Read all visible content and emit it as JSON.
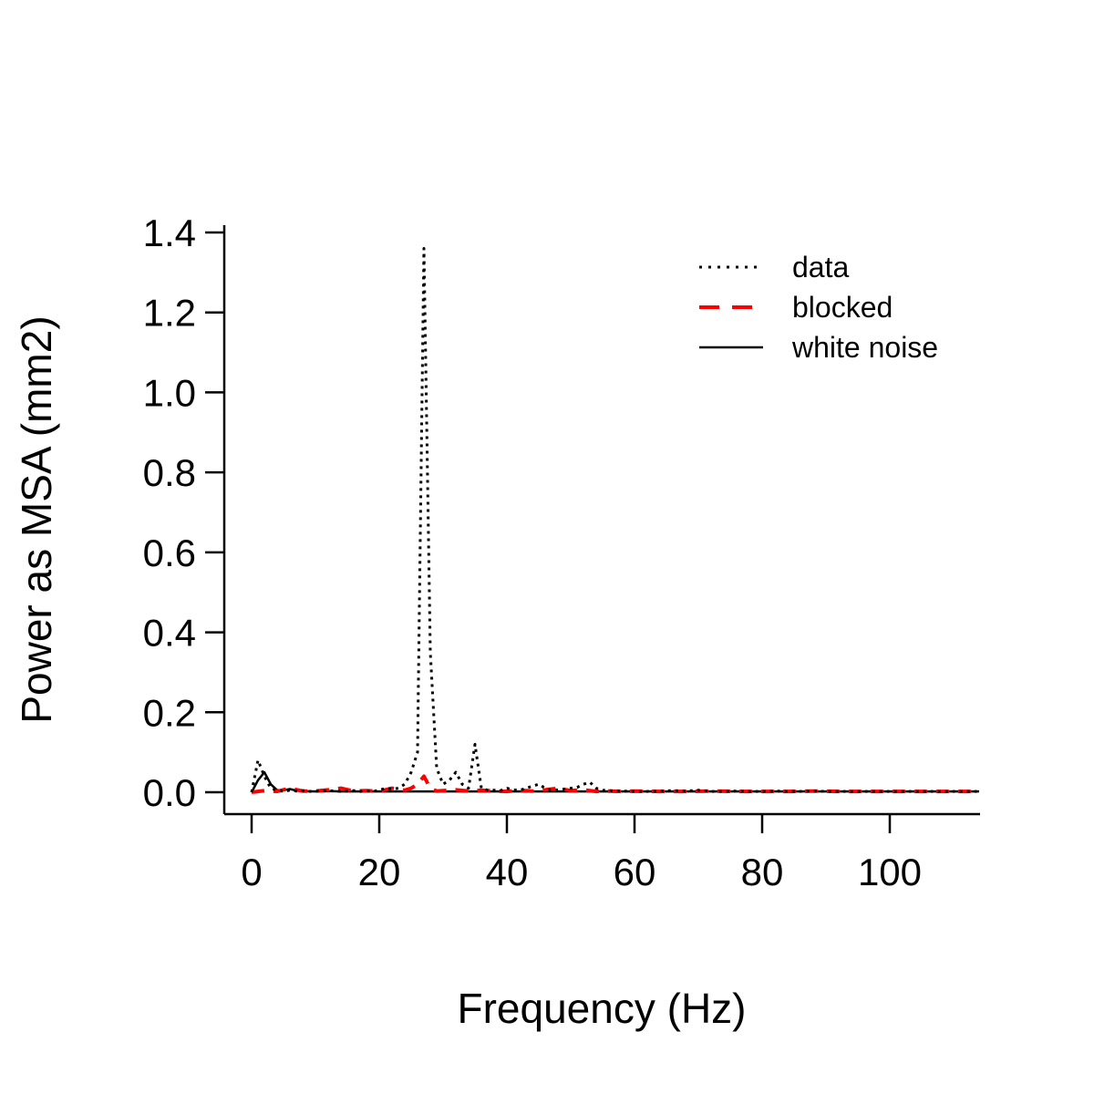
{
  "chart_data": {
    "type": "line",
    "title": "",
    "xlabel": "Frequency (Hz)",
    "ylabel": "Power as MSA (mm2)",
    "xlim": [
      -4,
      114
    ],
    "ylim": [
      -0.05,
      1.4
    ],
    "xticks": [
      0,
      20,
      40,
      60,
      80,
      100
    ],
    "yticks": [
      0.0,
      0.2,
      0.4,
      0.6,
      0.8,
      1.0,
      1.2,
      1.4
    ],
    "xtick_labels": [
      "0",
      "20",
      "40",
      "60",
      "80",
      "100"
    ],
    "ytick_labels": [
      "0.0",
      "0.2",
      "0.4",
      "0.6",
      "0.8",
      "1.0",
      "1.2",
      "1.4"
    ],
    "grid": false,
    "legend_position": "top-right",
    "series": [
      {
        "name": "data",
        "style": "dotted",
        "color": "#000000",
        "x": [
          0,
          1,
          2,
          3,
          4,
          5,
          6,
          7,
          8,
          9,
          10,
          11,
          12,
          13,
          14,
          15,
          16,
          17,
          18,
          19,
          20,
          21,
          22,
          23,
          24,
          25,
          26,
          27,
          28,
          29,
          30,
          31,
          32,
          33,
          34,
          35,
          36,
          37,
          38,
          39,
          40,
          41,
          42,
          43,
          44,
          45,
          46,
          47,
          48,
          49,
          50,
          51,
          52,
          53,
          54,
          55,
          56,
          58,
          60,
          62,
          64,
          66,
          68,
          70,
          72,
          74,
          76,
          78,
          80,
          82,
          84,
          86,
          88,
          90,
          92,
          94,
          96,
          98,
          100,
          102,
          104,
          106,
          108,
          110,
          112,
          114
        ],
        "y": [
          0.0,
          0.08,
          0.04,
          0.01,
          0.005,
          0.002,
          0.005,
          0.003,
          0.004,
          0.002,
          0.003,
          0.002,
          0.004,
          0.003,
          0.002,
          0.003,
          0.004,
          0.002,
          0.003,
          0.002,
          0.005,
          0.01,
          0.008,
          0.01,
          0.02,
          0.05,
          0.1,
          1.36,
          0.35,
          0.06,
          0.02,
          0.03,
          0.05,
          0.02,
          0.01,
          0.12,
          0.01,
          0.005,
          0.005,
          0.004,
          0.01,
          0.006,
          0.005,
          0.01,
          0.015,
          0.02,
          0.01,
          0.005,
          0.006,
          0.008,
          0.01,
          0.012,
          0.02,
          0.025,
          0.01,
          0.005,
          0.004,
          0.003,
          0.002,
          0.002,
          0.003,
          0.004,
          0.003,
          0.005,
          0.002,
          0.002,
          0.003,
          0.002,
          0.002,
          0.003,
          0.002,
          0.002,
          0.003,
          0.002,
          0.002,
          0.002,
          0.002,
          0.002,
          0.002,
          0.002,
          0.002,
          0.002,
          0.002,
          0.002,
          0.002,
          0.002
        ]
      },
      {
        "name": "blocked",
        "style": "dashed",
        "color": "#ff0000",
        "x": [
          0,
          2,
          4,
          6,
          8,
          10,
          12,
          14,
          16,
          18,
          20,
          22,
          24,
          25,
          26,
          27,
          28,
          29,
          30,
          32,
          34,
          36,
          38,
          40,
          42,
          44,
          46,
          48,
          50,
          52,
          54,
          56,
          58,
          60,
          64,
          68,
          72,
          76,
          80,
          84,
          88,
          92,
          96,
          100,
          104,
          108,
          114
        ],
        "y": [
          0.0,
          0.004,
          0.002,
          0.01,
          0.003,
          0.003,
          0.006,
          0.01,
          0.003,
          0.004,
          0.002,
          0.01,
          0.005,
          0.01,
          0.02,
          0.04,
          0.01,
          0.003,
          0.004,
          0.006,
          0.003,
          0.005,
          0.003,
          0.002,
          0.005,
          0.003,
          0.006,
          0.01,
          0.004,
          0.006,
          0.002,
          0.003,
          0.002,
          0.003,
          0.002,
          0.002,
          0.003,
          0.002,
          0.002,
          0.002,
          0.003,
          0.002,
          0.002,
          0.002,
          0.002,
          0.002,
          0.002
        ]
      },
      {
        "name": "white noise",
        "style": "solid",
        "color": "#000000",
        "x": [
          0,
          1,
          2,
          3,
          4,
          5,
          6,
          7,
          8,
          10,
          12,
          14,
          16,
          18,
          20,
          24,
          28,
          32,
          40,
          50,
          60,
          70,
          80,
          90,
          100,
          110,
          114
        ],
        "y": [
          0.0,
          0.03,
          0.05,
          0.02,
          0.005,
          0.005,
          0.008,
          0.004,
          0.003,
          0.002,
          0.003,
          0.002,
          0.002,
          0.002,
          0.002,
          0.002,
          0.002,
          0.002,
          0.002,
          0.002,
          0.002,
          0.002,
          0.002,
          0.002,
          0.002,
          0.002,
          0.002
        ]
      }
    ]
  }
}
